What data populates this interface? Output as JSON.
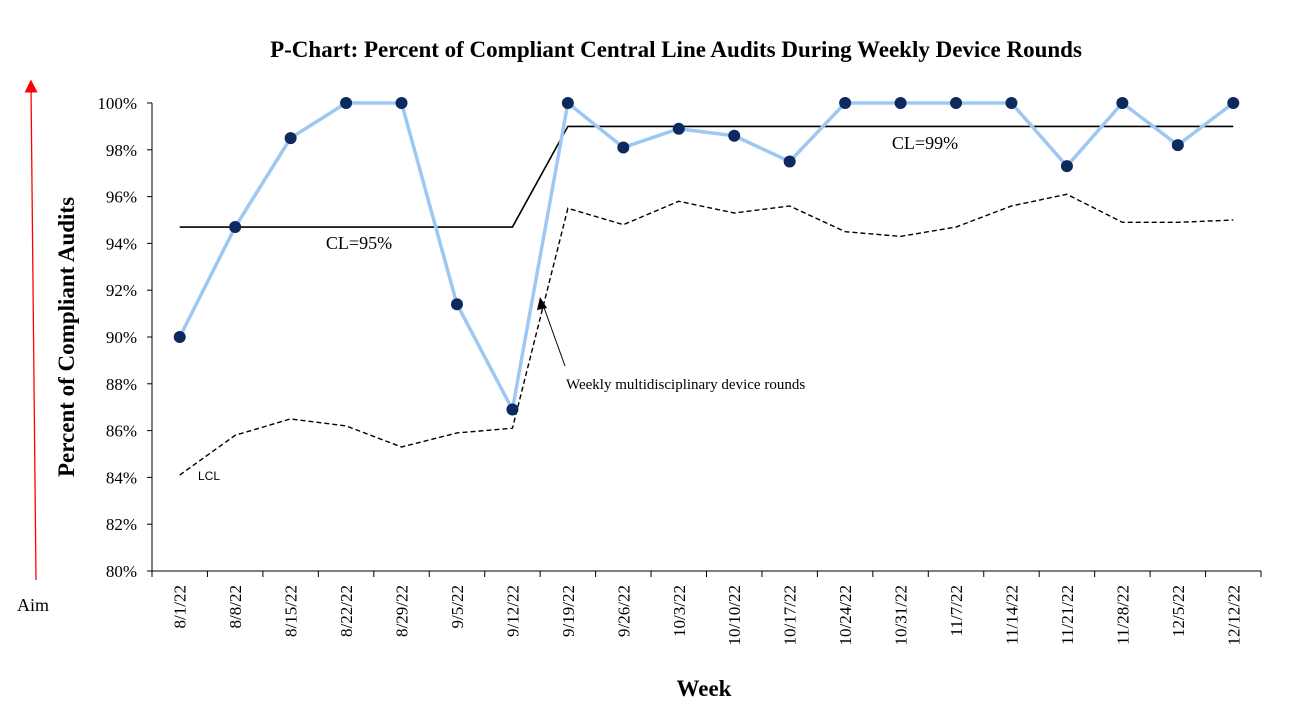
{
  "chart_data": {
    "type": "line",
    "title": "P-Chart: Percent of Compliant Central Line Audits During Weekly Device Rounds",
    "xlabel": "Week",
    "ylabel": "Percent of Compliant Audits",
    "ylim": [
      80,
      100
    ],
    "yticks": [
      "80%",
      "82%",
      "84%",
      "86%",
      "88%",
      "90%",
      "92%",
      "94%",
      "96%",
      "98%",
      "100%"
    ],
    "grid": false,
    "categories": [
      "8/1/22",
      "8/8/22",
      "8/15/22",
      "8/22/22",
      "8/29/22",
      "9/5/22",
      "9/12/22",
      "9/19/22",
      "9/26/22",
      "10/3/22",
      "10/10/22",
      "10/17/22",
      "10/24/22",
      "10/31/22",
      "11/7/22",
      "11/14/22",
      "11/21/22",
      "11/28/22",
      "12/5/22",
      "12/12/22"
    ],
    "series": [
      {
        "name": "",
        "style": "line-markers",
        "values": [
          90.0,
          94.7,
          98.5,
          100,
          100,
          91.4,
          86.9,
          100,
          98.1,
          98.9,
          98.6,
          97.5,
          100,
          100,
          100,
          100,
          97.3,
          100,
          98.2,
          100
        ]
      },
      {
        "name": "LCL",
        "style": "dashed",
        "values": [
          84.1,
          85.8,
          86.5,
          86.2,
          85.3,
          85.9,
          86.1,
          95.5,
          94.8,
          95.8,
          95.3,
          95.6,
          94.5,
          94.3,
          94.7,
          95.6,
          96.1,
          94.9,
          94.9,
          95.0
        ]
      },
      {
        "name": "CL",
        "style": "step",
        "values": [
          94.7,
          94.7,
          94.7,
          94.7,
          94.7,
          94.7,
          94.7,
          99.0,
          99.0,
          99.0,
          99.0,
          99.0,
          99.0,
          99.0,
          99.0,
          99.0,
          99.0,
          99.0,
          99.0,
          99.0
        ]
      }
    ],
    "annotations": {
      "cl_before": "CL=95%",
      "cl_after": "CL=99%",
      "lcl": "LCL",
      "intervention": "Weekly multidisciplinary device rounds",
      "aim": "Aim"
    },
    "colors": {
      "data_line": "#9DC8F2",
      "marker": "#0D2A5E",
      "center_line": "#000000",
      "lcl_line": "#000000",
      "aim_arrow": "#FF0000"
    }
  }
}
